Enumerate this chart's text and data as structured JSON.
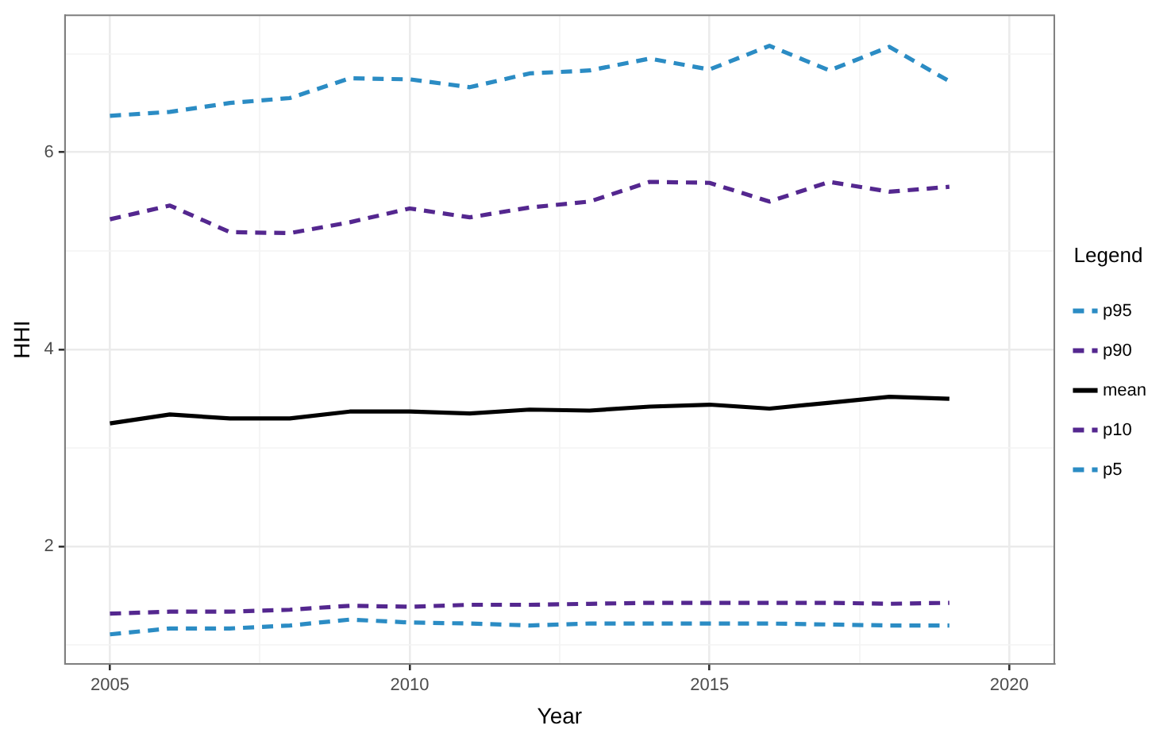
{
  "chart_data": {
    "type": "line",
    "xlabel": "Year",
    "ylabel": "HHI",
    "legend_title": "Legend",
    "legend": "right",
    "grid": true,
    "x": [
      2005,
      2006,
      2007,
      2008,
      2009,
      2010,
      2011,
      2012,
      2013,
      2014,
      2015,
      2016,
      2017,
      2018,
      2019
    ],
    "xlim": [
      2004.25,
      2020.75
    ],
    "xticks": [
      2005,
      {
        "value": 2007.5,
        "label": null
      },
      2010,
      {
        "value": 2012.5,
        "label": null
      },
      2015,
      {
        "value": 2017.5,
        "label": null
      },
      2020
    ],
    "ylim": [
      0.81,
      7.39
    ],
    "yticks": [
      {
        "value": 1,
        "label": null
      },
      2,
      {
        "value": 3,
        "label": null
      },
      4,
      {
        "value": 5,
        "label": null
      },
      6,
      {
        "value": 7,
        "label": null
      }
    ],
    "series": [
      {
        "name": "p95",
        "color": "#2b8cc4",
        "line_style": "dashed",
        "values": [
          6.37,
          6.41,
          6.5,
          6.55,
          6.75,
          6.74,
          6.66,
          6.8,
          6.83,
          6.95,
          6.84,
          7.08,
          6.83,
          7.07,
          6.72
        ]
      },
      {
        "name": "p90",
        "color": "#54278f",
        "line_style": "dashed",
        "values": [
          5.32,
          5.46,
          5.19,
          5.18,
          5.29,
          5.43,
          5.34,
          5.44,
          5.5,
          5.7,
          5.69,
          5.5,
          5.7,
          5.6,
          5.65
        ]
      },
      {
        "name": "mean",
        "color": "#000000",
        "line_style": "solid",
        "values": [
          3.25,
          3.34,
          3.3,
          3.3,
          3.37,
          3.37,
          3.35,
          3.39,
          3.38,
          3.42,
          3.44,
          3.4,
          3.46,
          3.52,
          3.5
        ]
      },
      {
        "name": "p10",
        "color": "#54278f",
        "line_style": "dashed",
        "values": [
          1.32,
          1.34,
          1.34,
          1.36,
          1.4,
          1.39,
          1.41,
          1.41,
          1.42,
          1.43,
          1.43,
          1.43,
          1.43,
          1.42,
          1.43
        ]
      },
      {
        "name": "p5",
        "color": "#2b8cc4",
        "line_style": "dashed",
        "values": [
          1.11,
          1.17,
          1.17,
          1.2,
          1.26,
          1.23,
          1.22,
          1.2,
          1.22,
          1.22,
          1.22,
          1.22,
          1.21,
          1.2,
          1.2
        ]
      }
    ]
  }
}
